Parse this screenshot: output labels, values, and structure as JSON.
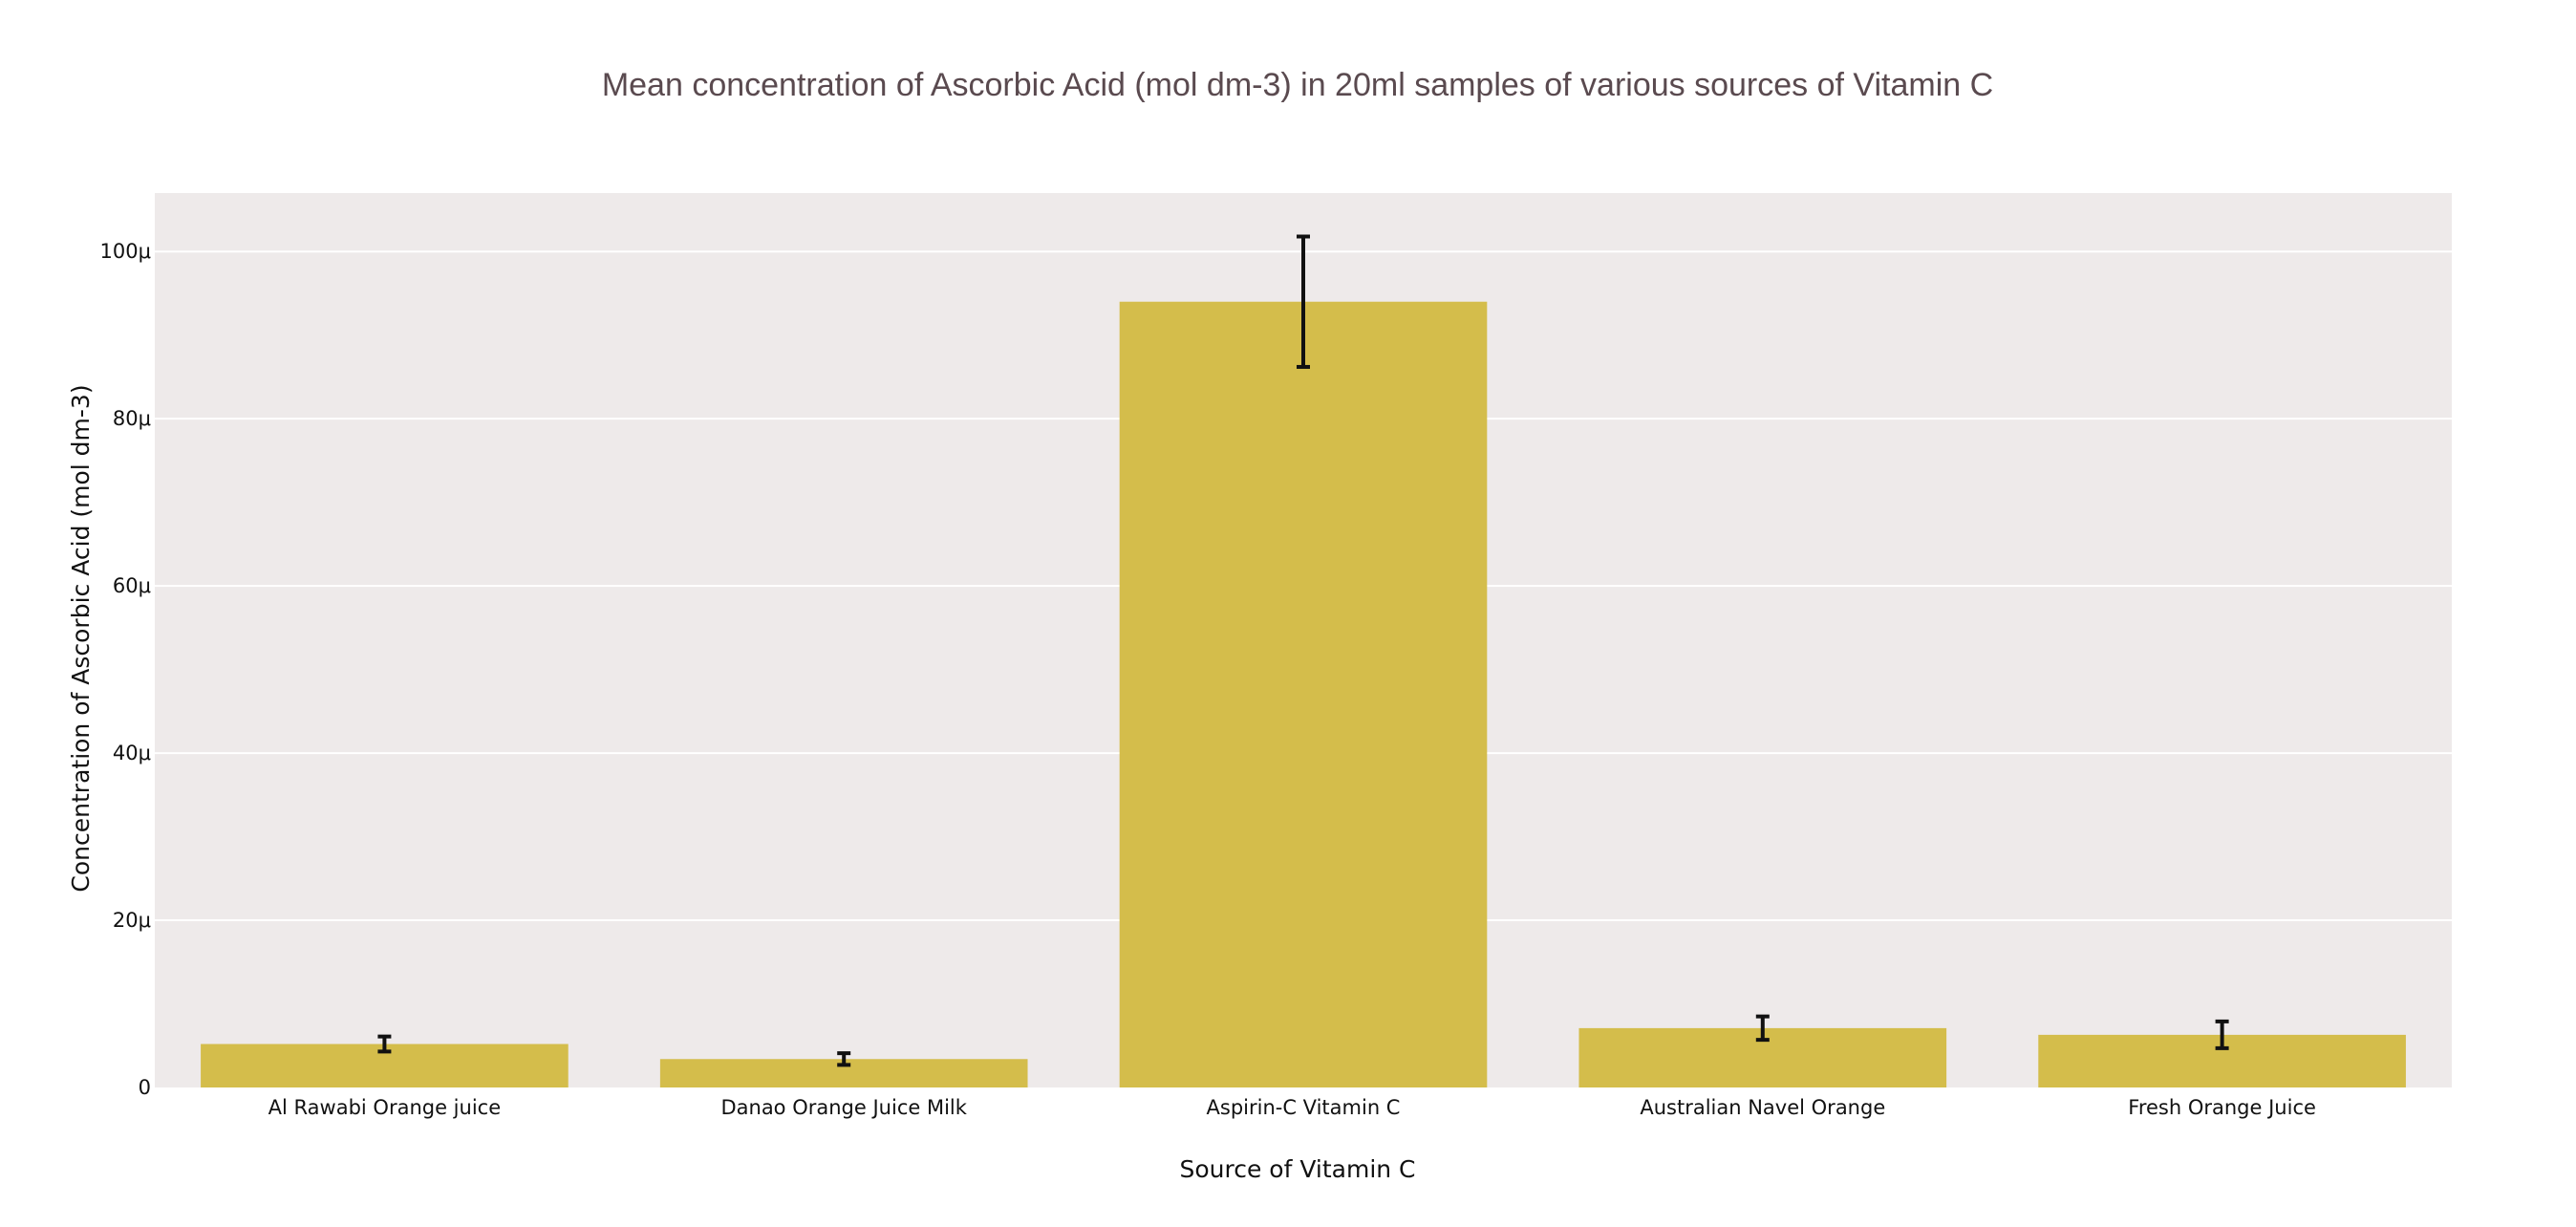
{
  "chart_data": {
    "type": "bar",
    "title": "Mean concentration of Ascorbic Acid (mol dm-3) in 20ml samples of various sources of Vitamin C",
    "xlabel": "Source of Vitamin C",
    "ylabel": "Concentration of Ascorbic Acid (mol dm-3)",
    "categories": [
      "Al Rawabi Orange juice",
      "Danao Orange Juice Milk",
      "Aspirin-C Vitamin C",
      "Australian Navel Orange",
      "Fresh Orange Juice"
    ],
    "values": [
      5.2e-06,
      3.4e-06,
      9.4e-05,
      7.1e-06,
      6.3e-06
    ],
    "error": [
      9e-07,
      7e-07,
      7.8e-06,
      1.4e-06,
      1.6e-06
    ],
    "ylim": [
      0,
      0.000107
    ],
    "yticks": [
      0,
      2e-05,
      4e-05,
      6e-05,
      8e-05,
      0.0001
    ],
    "ytick_labels": [
      "0",
      "20μ",
      "40μ",
      "60μ",
      "80μ",
      "100μ"
    ],
    "grid": true,
    "colors": {
      "bar": "#d4bd4b",
      "plot_bg": "#eeeaea",
      "grid": "#ffffff",
      "error_bar": "#111111",
      "title": "#5a4a4f"
    }
  }
}
